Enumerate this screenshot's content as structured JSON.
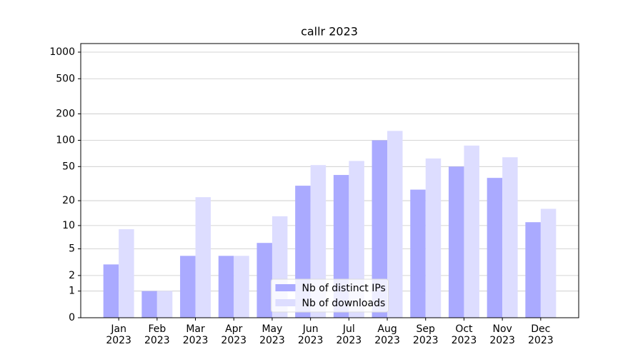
{
  "chart_data": {
    "type": "bar",
    "title": "callr 2023",
    "categories": [
      "Jan\n2023",
      "Feb\n2023",
      "Mar\n2023",
      "Apr\n2023",
      "May\n2023",
      "Jun\n2023",
      "Jul\n2023",
      "Aug\n2023",
      "Sep\n2023",
      "Oct\n2023",
      "Nov\n2023",
      "Dec\n2023"
    ],
    "series": [
      {
        "name": "Nb of distinct IPs",
        "color": "#aaaaff",
        "values": [
          3,
          1,
          4,
          4,
          6,
          30,
          40,
          100,
          27,
          50,
          37,
          11
        ]
      },
      {
        "name": "Nb of downloads",
        "color": "#ddddff",
        "values": [
          9,
          1,
          22,
          4,
          13,
          52,
          58,
          128,
          62,
          87,
          64,
          16
        ]
      }
    ],
    "yscale": "log1p",
    "ylim": [
      0,
      1250
    ],
    "yticks": [
      0,
      1,
      2,
      5,
      10,
      20,
      50,
      100,
      200,
      500,
      1000
    ],
    "grid": true,
    "legend": "lower center"
  }
}
